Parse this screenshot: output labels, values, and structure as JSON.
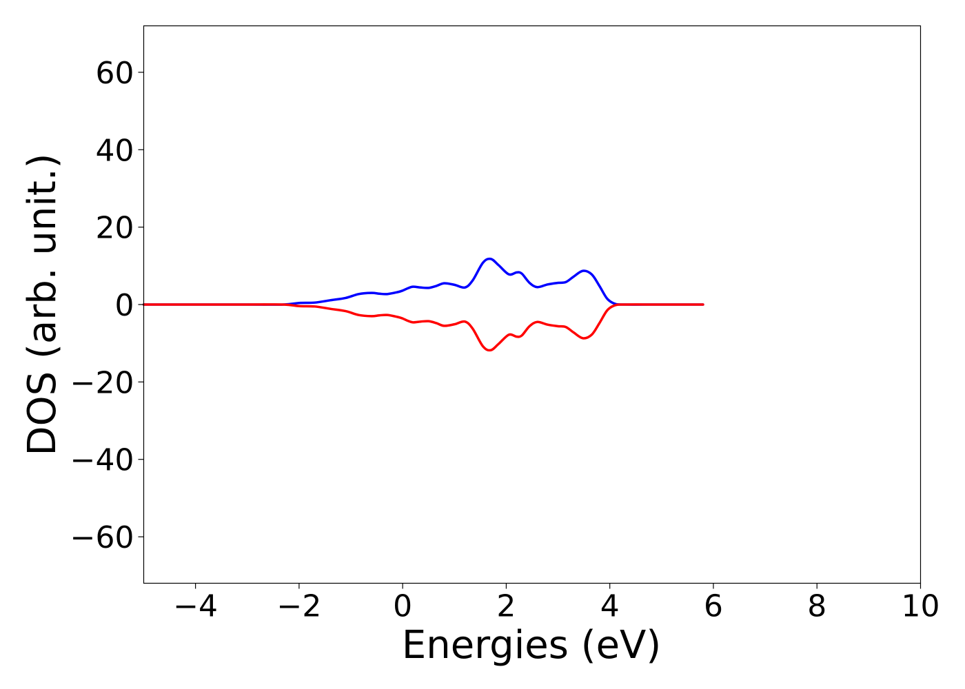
{
  "chart_data": {
    "type": "line",
    "xlabel": "Energies (eV)",
    "ylabel": "DOS (arb. unit.)",
    "xlim": [
      -5,
      10
    ],
    "ylim": [
      -72,
      72
    ],
    "xticks": [
      -4,
      -2,
      0,
      2,
      4,
      6,
      8,
      10
    ],
    "xtick_labels": [
      "−4",
      "−2",
      "0",
      "2",
      "4",
      "6",
      "8",
      "10"
    ],
    "yticks": [
      60,
      40,
      20,
      0,
      -20,
      -40,
      -60
    ],
    "ytick_labels": [
      "60",
      "40",
      "20",
      "0",
      "−20",
      "−40",
      "−60"
    ],
    "grid": false,
    "legend": "none",
    "series": [
      {
        "color": "#0000ff",
        "x": [
          -5,
          -3,
          -2.3,
          -2,
          -1.7,
          -1.4,
          -1.1,
          -0.85,
          -0.6,
          -0.45,
          -0.3,
          -0.1,
          0,
          0.1,
          0.2,
          0.35,
          0.5,
          0.65,
          0.8,
          1.0,
          1.2,
          1.35,
          1.55,
          1.7,
          1.85,
          2.05,
          2.2,
          2.3,
          2.45,
          2.6,
          2.8,
          3.0,
          3.15,
          3.3,
          3.48,
          3.65,
          3.8,
          3.95,
          4.1,
          4.3,
          5,
          5.8
        ],
        "y": [
          0,
          0,
          0,
          0.4,
          0.5,
          1.1,
          1.7,
          2.7,
          3.0,
          2.8,
          2.7,
          3.2,
          3.6,
          4.2,
          4.6,
          4.4,
          4.3,
          4.8,
          5.5,
          5.1,
          4.4,
          6.2,
          10.8,
          11.8,
          10.2,
          7.8,
          8.3,
          8.0,
          5.6,
          4.5,
          5.2,
          5.6,
          5.8,
          7.2,
          8.7,
          7.8,
          4.8,
          1.5,
          0.2,
          0,
          0,
          0
        ]
      },
      {
        "color": "#ff0000",
        "x": [
          -5,
          -3,
          -2.3,
          -2,
          -1.7,
          -1.4,
          -1.1,
          -0.85,
          -0.6,
          -0.45,
          -0.3,
          -0.1,
          0,
          0.1,
          0.2,
          0.35,
          0.5,
          0.65,
          0.8,
          1.0,
          1.2,
          1.35,
          1.55,
          1.7,
          1.85,
          2.05,
          2.2,
          2.3,
          2.45,
          2.6,
          2.8,
          3.0,
          3.15,
          3.3,
          3.48,
          3.65,
          3.8,
          3.95,
          4.1,
          4.3,
          5,
          5.8
        ],
        "y": [
          0,
          0,
          0,
          -0.4,
          -0.5,
          -1.1,
          -1.7,
          -2.7,
          -3.0,
          -2.8,
          -2.7,
          -3.2,
          -3.6,
          -4.2,
          -4.6,
          -4.4,
          -4.3,
          -4.8,
          -5.5,
          -5.1,
          -4.4,
          -6.2,
          -10.8,
          -11.8,
          -10.2,
          -7.8,
          -8.3,
          -8.0,
          -5.6,
          -4.5,
          -5.2,
          -5.6,
          -5.8,
          -7.2,
          -8.7,
          -7.8,
          -4.8,
          -1.5,
          -0.2,
          0,
          0,
          0
        ]
      }
    ]
  }
}
